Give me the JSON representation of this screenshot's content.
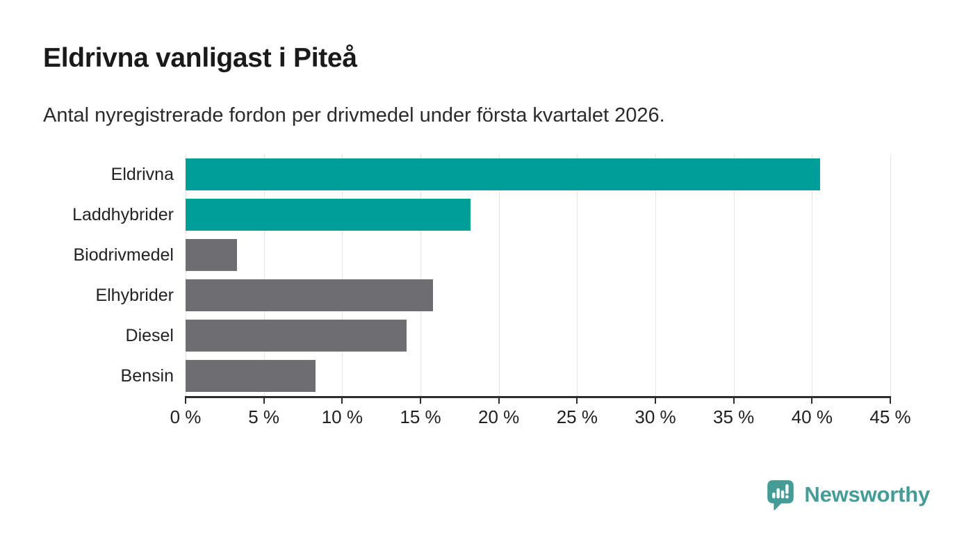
{
  "title": "Eldrivna vanligast i Piteå",
  "subtitle": "Antal nyregistrerade fordon per drivmedel under första kvartalet 2026.",
  "colors": {
    "highlight_bar": "#009E98",
    "default_bar": "#6E6D72",
    "gridline": "#E3E3E3",
    "axis": "#2D2D2D",
    "title_text": "#1A1A1A",
    "body_text": "#222222",
    "logo_teal": "#459C96"
  },
  "chart_data": {
    "type": "bar",
    "orientation": "horizontal",
    "title": "Eldrivna vanligast i Piteå",
    "subtitle": "Antal nyregistrerade fordon per drivmedel under första kvartalet 2026.",
    "categories": [
      "Eldrivna",
      "Laddhybrider",
      "Biodrivmedel",
      "Elhybrider",
      "Diesel",
      "Bensin"
    ],
    "values": [
      40.5,
      18.2,
      3.3,
      15.8,
      14.1,
      8.3
    ],
    "bar_colors": [
      "#009E98",
      "#009E98",
      "#6E6D72",
      "#6E6D72",
      "#6E6D72",
      "#6E6D72"
    ],
    "xlabel": "",
    "ylabel": "",
    "xlim": [
      0,
      45
    ],
    "x_ticks": [
      0,
      5,
      10,
      15,
      20,
      25,
      30,
      35,
      40,
      45
    ],
    "x_tick_labels": [
      "0 %",
      "5 %",
      "10 %",
      "15 %",
      "20 %",
      "25 %",
      "30 %",
      "35 %",
      "40 %",
      "45 %"
    ],
    "grid": true,
    "legend": false
  },
  "footer": {
    "brand": "Newsworthy"
  }
}
